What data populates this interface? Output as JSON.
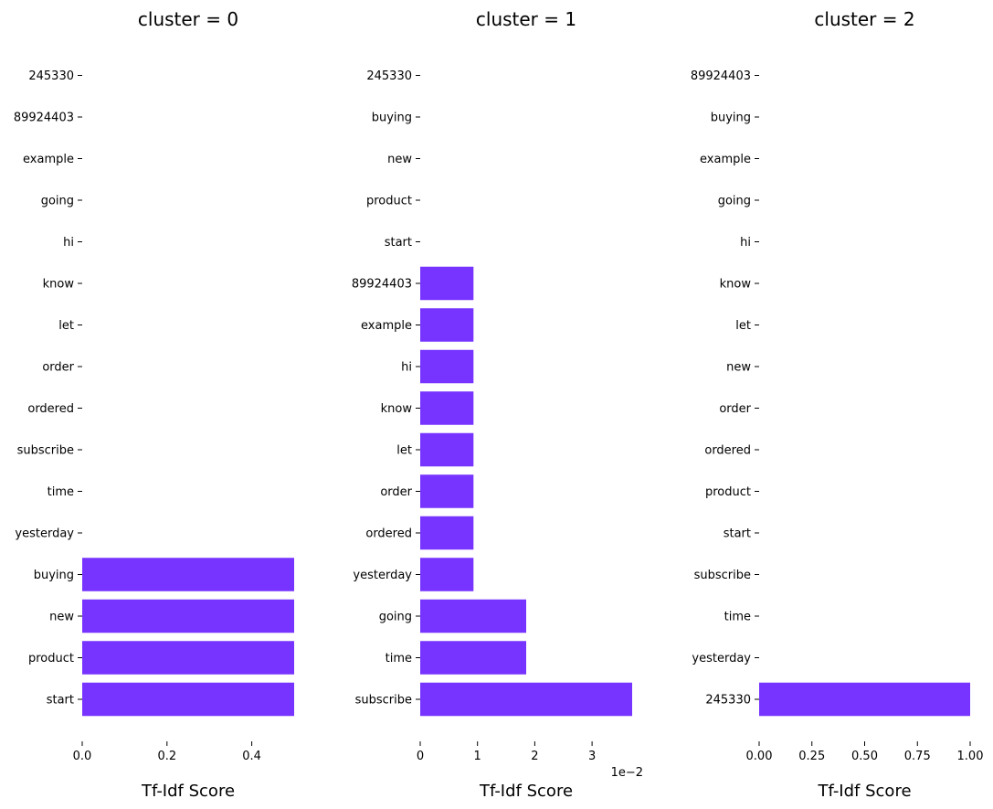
{
  "chart_data": [
    {
      "type": "bar",
      "orientation": "horizontal",
      "title": "cluster = 0",
      "xlabel": "Tf-Idf Score",
      "ylabel": "",
      "color": "#7733ff",
      "xlim": [
        0,
        0.5
      ],
      "xticks": [
        "0.0",
        "0.2",
        "0.4"
      ],
      "xtick_values": [
        0.0,
        0.2,
        0.4
      ],
      "offset_label": "",
      "categories": [
        "245330",
        "89924403",
        "example",
        "going",
        "hi",
        "know",
        "let",
        "order",
        "ordered",
        "subscribe",
        "time",
        "yesterday",
        "buying",
        "new",
        "product",
        "start"
      ],
      "values": [
        0,
        0,
        0,
        0,
        0,
        0,
        0,
        0,
        0,
        0,
        0,
        0,
        0.5,
        0.5,
        0.5,
        0.5
      ]
    },
    {
      "type": "bar",
      "orientation": "horizontal",
      "title": "cluster = 1",
      "xlabel": "Tf-Idf Score",
      "ylabel": "",
      "color": "#7733ff",
      "xlim": [
        0,
        0.037
      ],
      "xticks": [
        "0",
        "1",
        "2",
        "3"
      ],
      "xtick_values": [
        0,
        0.01,
        0.02,
        0.03
      ],
      "offset_label": "1e−2",
      "categories": [
        "245330",
        "buying",
        "new",
        "product",
        "start",
        "89924403",
        "example",
        "hi",
        "know",
        "let",
        "order",
        "ordered",
        "yesterday",
        "going",
        "time",
        "subscribe"
      ],
      "values": [
        0,
        0,
        0,
        0,
        0,
        0.0093,
        0.0093,
        0.0093,
        0.0093,
        0.0093,
        0.0093,
        0.0093,
        0.0093,
        0.0185,
        0.0185,
        0.037
      ]
    },
    {
      "type": "bar",
      "orientation": "horizontal",
      "title": "cluster = 2",
      "xlabel": "Tf-Idf Score",
      "ylabel": "",
      "color": "#7733ff",
      "xlim": [
        0,
        1.0
      ],
      "xticks": [
        "0.00",
        "0.25",
        "0.50",
        "0.75",
        "1.00"
      ],
      "xtick_values": [
        0,
        0.25,
        0.5,
        0.75,
        1.0
      ],
      "offset_label": "",
      "categories": [
        "89924403",
        "buying",
        "example",
        "going",
        "hi",
        "know",
        "let",
        "new",
        "order",
        "ordered",
        "product",
        "start",
        "subscribe",
        "time",
        "yesterday",
        "245330"
      ],
      "values": [
        0,
        0,
        0,
        0,
        0,
        0,
        0,
        0,
        0,
        0,
        0,
        0,
        0,
        0,
        0,
        1.0
      ]
    }
  ]
}
